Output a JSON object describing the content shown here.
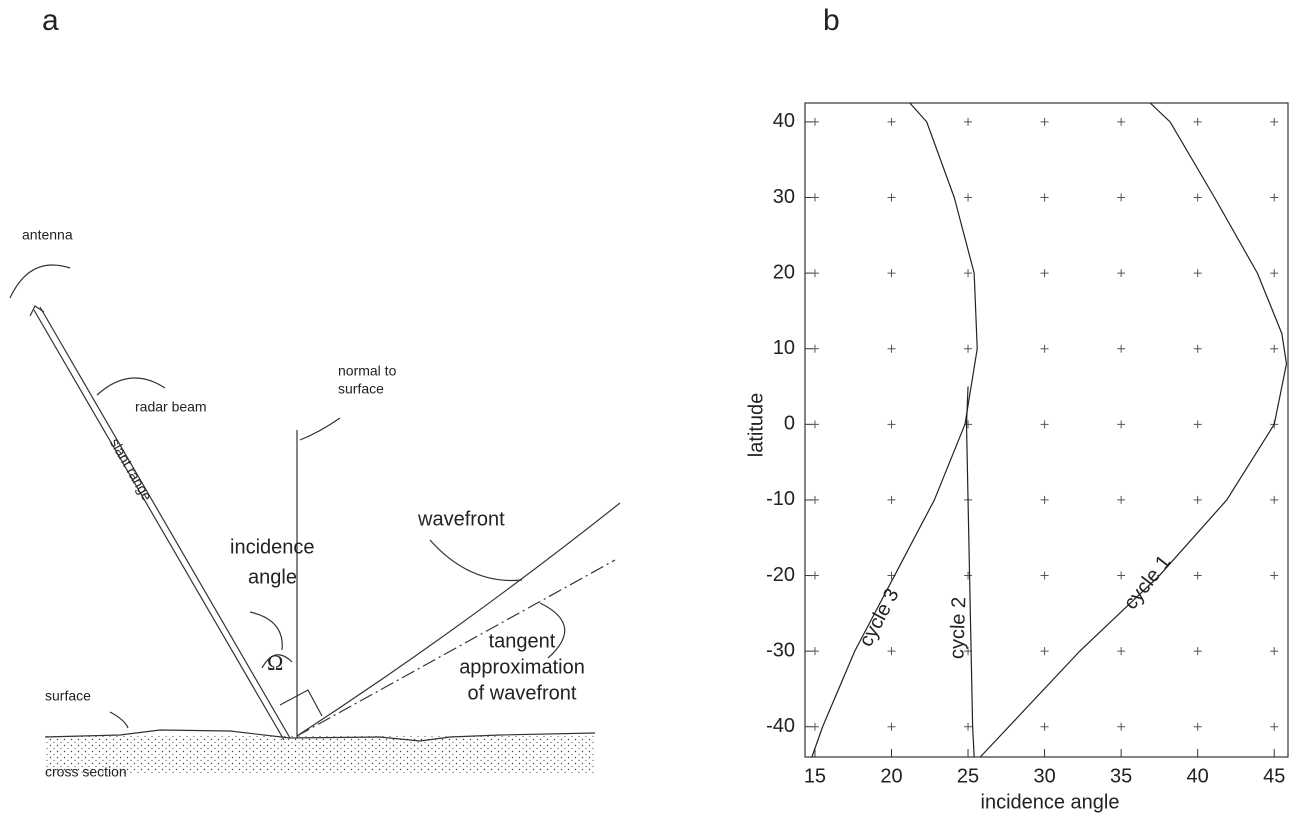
{
  "panel_labels": [
    "a",
    "b"
  ],
  "diagram": {
    "antenna": "antenna",
    "radar_beam": "radar beam",
    "slant_range": "slant range",
    "normal_to_surface": [
      "normal to",
      "surface"
    ],
    "incidence_angle": [
      "incidence",
      "angle"
    ],
    "omega": "Ω",
    "wavefront": "wavefront",
    "tangent": [
      "tangent",
      "approximation",
      "of wavefront"
    ],
    "surface": "surface",
    "cross_section": "cross section"
  },
  "chart_data": {
    "type": "line",
    "xlabel": "incidence angle",
    "ylabel": "latitude",
    "xlim": [
      14.35,
      45.9
    ],
    "ylim": [
      -44,
      42.5
    ],
    "xticks": [
      15,
      20,
      25,
      30,
      35,
      40,
      45
    ],
    "yticks": [
      -40,
      -30,
      -20,
      -10,
      0,
      10,
      20,
      30,
      40
    ],
    "grid": true,
    "series": [
      {
        "name": "cycle 1",
        "color": "#222222",
        "x": [
          36.9,
          38.2,
          41.1,
          43.9,
          45.5,
          45.8,
          45.0,
          41.9,
          37.5,
          32.3,
          25.8
        ],
        "y": [
          42.5,
          40,
          30,
          20,
          12,
          8,
          0,
          -10,
          -20,
          -30,
          -44
        ]
      },
      {
        "name": "cycle 2",
        "color": "#222222",
        "x": [
          25.0,
          24.9,
          25.0,
          25.1,
          25.2,
          25.3,
          25.4
        ],
        "y": [
          5,
          0,
          -10,
          -20,
          -30,
          -40,
          -44
        ]
      },
      {
        "name": "cycle 3",
        "color": "#222222",
        "x": [
          21.2,
          22.3,
          24.1,
          25.4,
          25.6,
          24.8,
          22.8,
          20.2,
          17.6,
          15.5,
          14.8
        ],
        "y": [
          42.5,
          40,
          30,
          20,
          10,
          0,
          -10,
          -20,
          -30,
          -40,
          -44
        ]
      }
    ]
  }
}
